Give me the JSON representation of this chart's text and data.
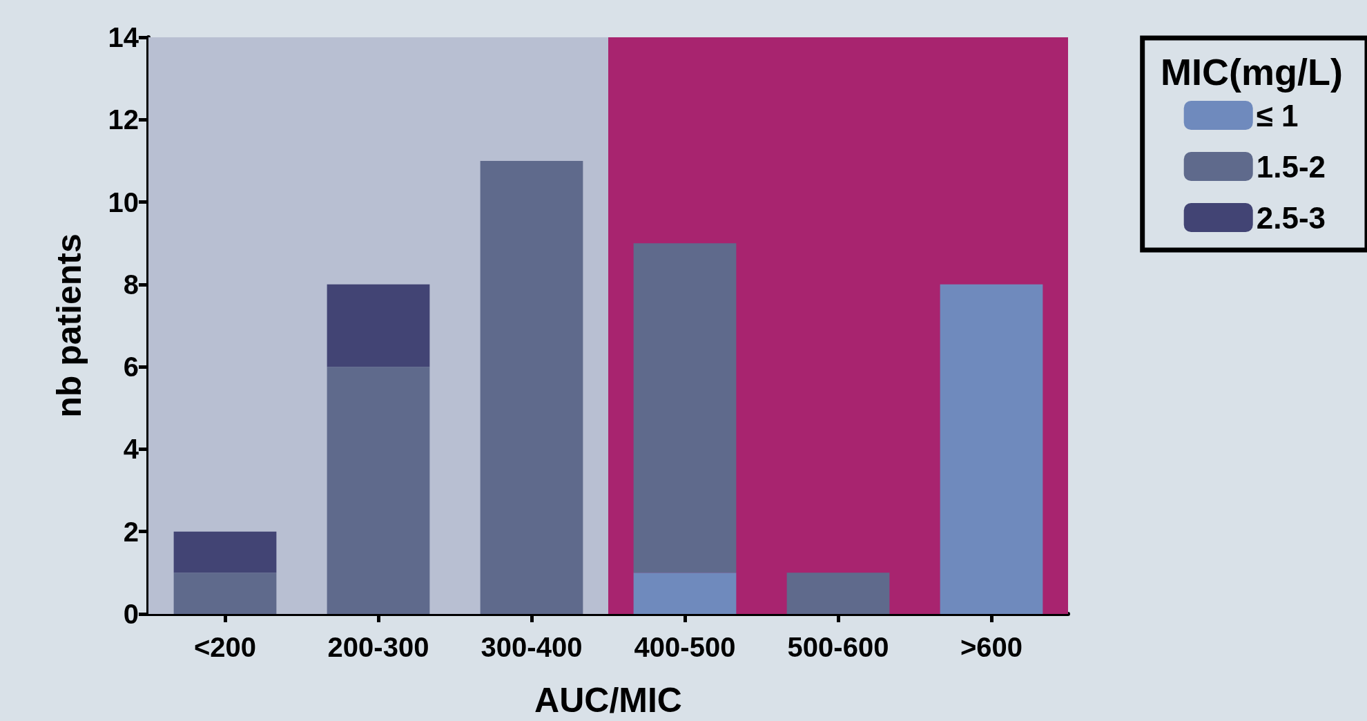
{
  "chart_data": {
    "type": "bar",
    "stacked": true,
    "xlabel": "AUC/MIC",
    "ylabel": "nb patients",
    "legend_title": "MIC(mg/L)",
    "legend": "top right",
    "categories": [
      "<200",
      "200-300",
      "300-400",
      "400-500",
      "500-600",
      ">600"
    ],
    "ylim": [
      0,
      14
    ],
    "yticks": [
      0,
      2,
      4,
      6,
      8,
      10,
      12,
      14
    ],
    "series": [
      {
        "name": "≤ 1",
        "color": "#6f8abd",
        "values": [
          0,
          0,
          0,
          1,
          0,
          8
        ]
      },
      {
        "name": "1.5-2",
        "color": "#5f6a8c",
        "values": [
          1,
          6,
          11,
          8,
          1,
          0
        ]
      },
      {
        "name": "2.5-3",
        "color": "#424474",
        "values": [
          1,
          2,
          0,
          0,
          0,
          0
        ]
      }
    ],
    "bands": [
      {
        "axis": "x",
        "from": "<200",
        "to": "300-400",
        "color": "#b8bfd2"
      },
      {
        "axis": "x",
        "from": "400-500",
        "to": ">600",
        "color": "#a8246f"
      }
    ]
  }
}
